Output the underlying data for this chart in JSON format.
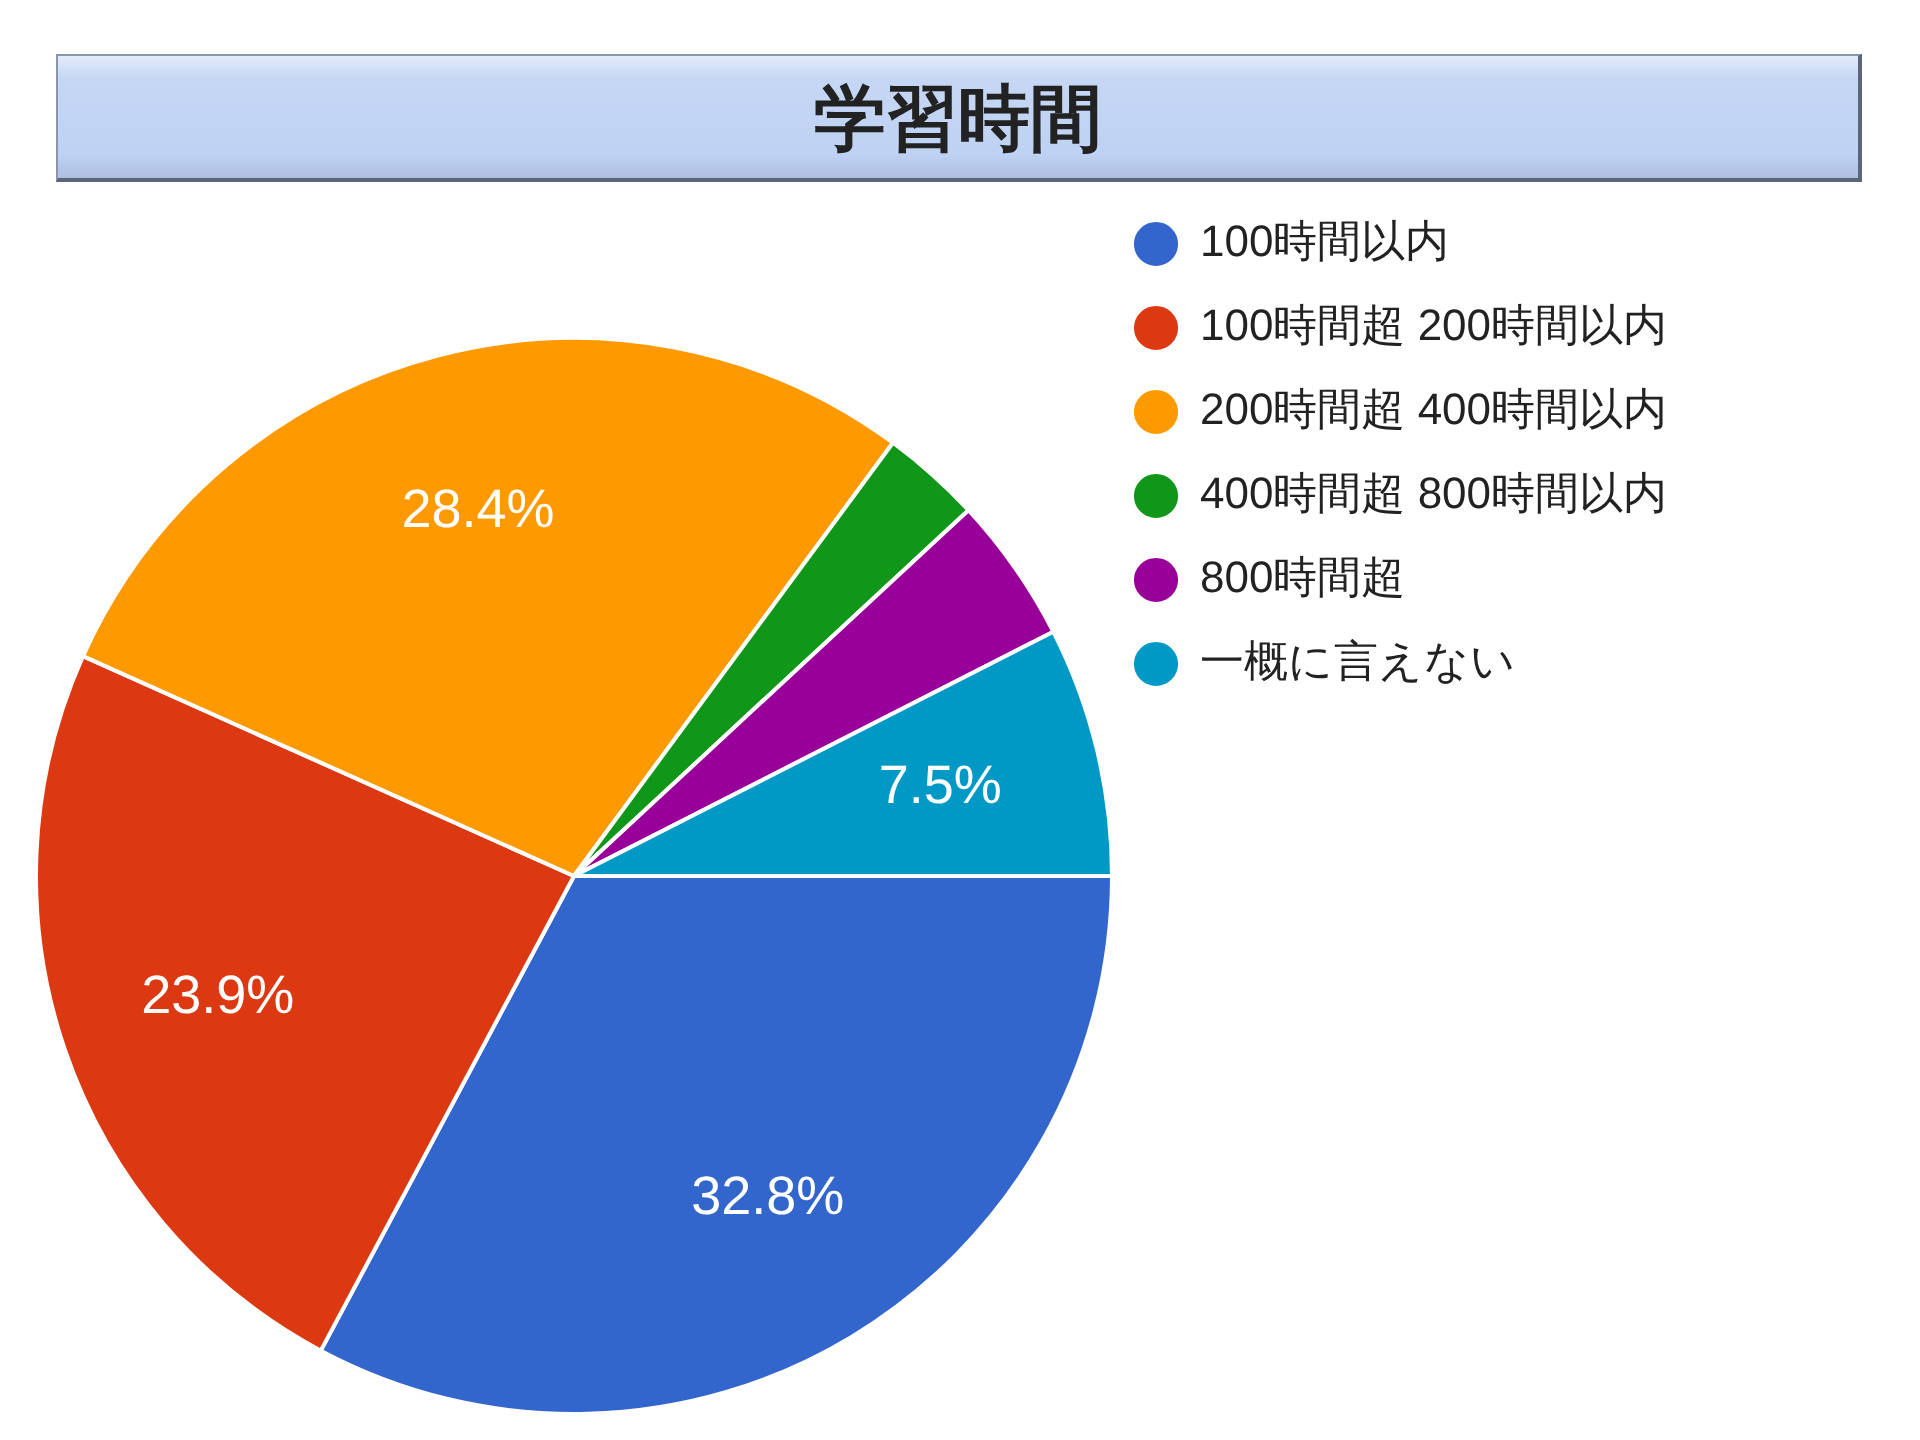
{
  "chart_data": {
    "type": "pie",
    "title": "学習時間",
    "categories": [
      "100時間以内",
      "100時間超 200時間以内",
      "200時間超 400時間以内",
      "400時間超 800時間以内",
      "800時間超",
      "一概に言えない"
    ],
    "values": [
      32.8,
      23.9,
      28.4,
      3.0,
      4.4,
      7.5
    ],
    "colors": [
      "#3366cc",
      "#dc3912",
      "#ff9900",
      "#109618",
      "#990099",
      "#0099c6"
    ],
    "value_labels": [
      "32.8%",
      "23.9%",
      "28.4%",
      null,
      null,
      "7.5%"
    ],
    "legend": "top right"
  }
}
